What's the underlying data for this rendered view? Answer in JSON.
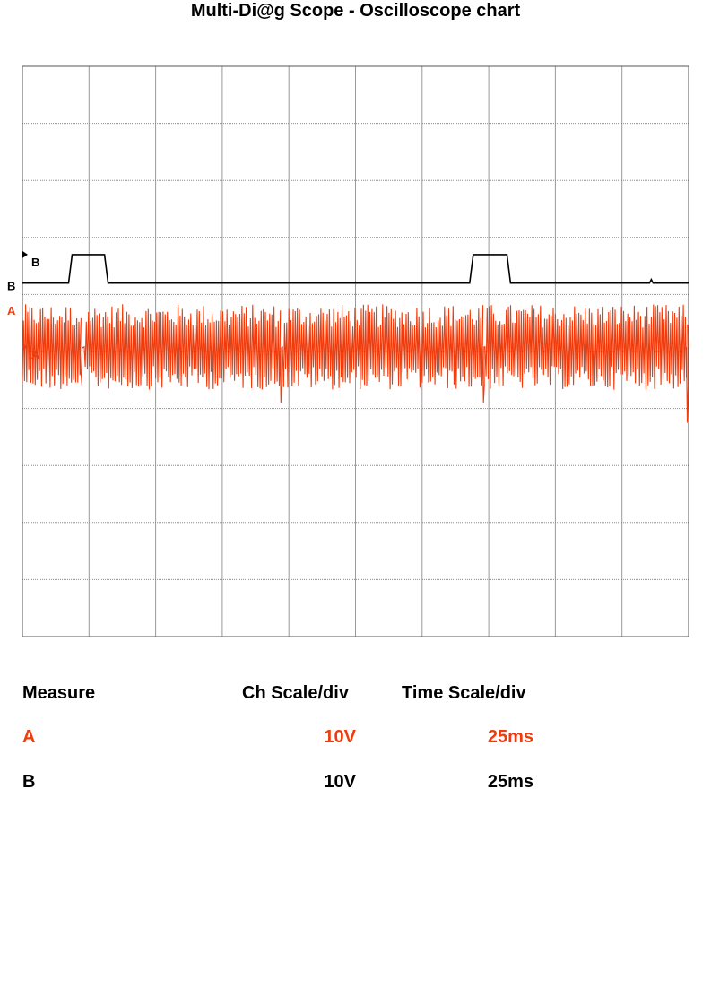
{
  "page": {
    "title": "Multi-Di@g Scope - Oscilloscope chart"
  },
  "chart_data": {
    "type": "line",
    "title": "Multi-Di@g Scope - Oscilloscope chart",
    "grid": true,
    "divisions": {
      "x": 10,
      "y": 10
    },
    "x_unit": "ms",
    "xlim": [
      0,
      250
    ],
    "channels": [
      {
        "name": "A",
        "color": "#f03c0c",
        "scale_per_div": "10V",
        "time_per_div": "25ms",
        "marker_label": "A",
        "side_label": "A",
        "baseline_div": 5.08,
        "waveform": "burst",
        "bursts": [
          {
            "start": 0,
            "end": 22
          },
          {
            "start": 23.5,
            "end": 97
          },
          {
            "start": 98,
            "end": 173
          },
          {
            "start": 174,
            "end": 250
          }
        ],
        "burst_swing_div": 0.75,
        "edge_spikes": [
          {
            "t": 22,
            "div": 4.6
          },
          {
            "t": 97,
            "div": 4.1
          },
          {
            "t": 173,
            "div": 4.1
          },
          {
            "t": 249.5,
            "div": 3.75
          }
        ]
      },
      {
        "name": "B",
        "color": "#000000",
        "scale_per_div": "10V",
        "time_per_div": "25ms",
        "marker_label": "B",
        "side_label": "B",
        "baseline_div": 6.2,
        "waveform": "pulse",
        "pulse_high_div": 6.7,
        "pulses": [
          {
            "start": 18,
            "end": 31.5
          },
          {
            "start": 168.5,
            "end": 182.5
          }
        ],
        "glitch_t": 236
      }
    ]
  },
  "measurements": {
    "headers": {
      "measure": "Measure",
      "ch_scale": "Ch Scale/div",
      "time_scale": "Time Scale/div"
    },
    "rows": [
      {
        "name": "A",
        "ch_scale": "10V",
        "time_scale": "25ms",
        "color": "#f03c0c"
      },
      {
        "name": "B",
        "ch_scale": "10V",
        "time_scale": "25ms",
        "color": "#000000"
      }
    ]
  }
}
